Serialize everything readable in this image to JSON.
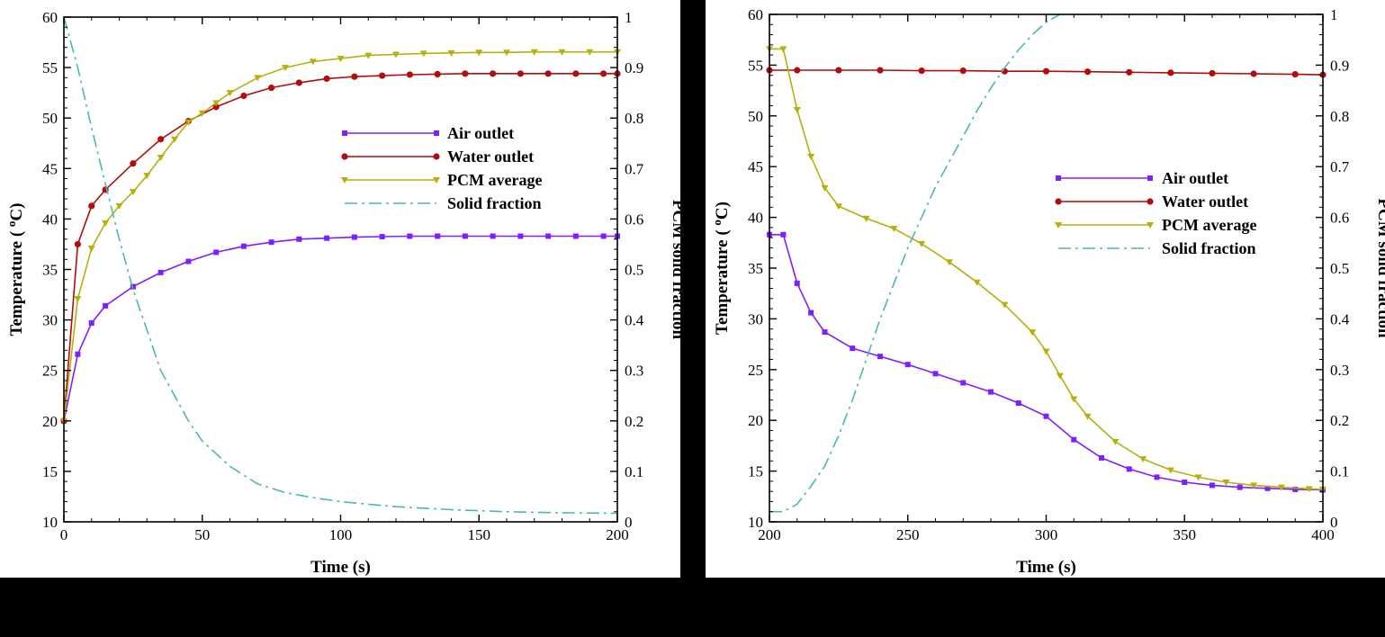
{
  "colors": {
    "air": "#7f1fff",
    "water": "#b20d0d",
    "pcm": "#b5b00c",
    "solid": "#4db6b6"
  },
  "chart_data": [
    {
      "type": "line",
      "xlabel": "Time (s)",
      "ylabel_left": "Temperature ( ",
      "ylabel_left_sup": "o",
      "ylabel_left_tail": "C)",
      "ylabel_right": "PCM solid fraction",
      "xlim": [
        0,
        200
      ],
      "ylim_left": [
        10,
        60
      ],
      "ylim_right": [
        0,
        1
      ],
      "x_ticks": [
        0,
        50,
        100,
        150,
        200
      ],
      "y_ticks_left": [
        10,
        15,
        20,
        25,
        30,
        35,
        40,
        45,
        50,
        55,
        60
      ],
      "y_ticks_right": [
        0,
        0.1,
        0.2,
        0.3,
        0.4,
        0.5,
        0.6,
        0.7,
        0.8,
        0.9,
        1
      ],
      "grid": false,
      "legend_position": "center-right",
      "series": [
        {
          "name": "Air outlet",
          "axis": "left",
          "marker": "square",
          "color_key": "air",
          "x": [
            0,
            5,
            10,
            15,
            25,
            35,
            45,
            55,
            65,
            75,
            85,
            95,
            105,
            115,
            125,
            135,
            145,
            155,
            165,
            175,
            185,
            195,
            200
          ],
          "y": [
            20,
            26.6,
            29.7,
            31.4,
            33.3,
            34.7,
            35.8,
            36.7,
            37.3,
            37.7,
            38.0,
            38.1,
            38.2,
            38.25,
            38.3,
            38.3,
            38.3,
            38.3,
            38.3,
            38.3,
            38.3,
            38.3,
            38.3
          ]
        },
        {
          "name": "Water outlet",
          "axis": "left",
          "marker": "circle",
          "color_key": "water",
          "x": [
            0,
            5,
            10,
            15,
            25,
            35,
            45,
            55,
            65,
            75,
            85,
            95,
            105,
            115,
            125,
            135,
            145,
            155,
            165,
            175,
            185,
            195,
            200
          ],
          "y": [
            20,
            37.5,
            41.3,
            42.9,
            45.5,
            47.9,
            49.7,
            51.1,
            52.2,
            53.0,
            53.5,
            53.9,
            54.1,
            54.2,
            54.3,
            54.35,
            54.4,
            54.4,
            54.4,
            54.4,
            54.4,
            54.4,
            54.4
          ]
        },
        {
          "name": "PCM average",
          "axis": "left",
          "marker": "triangle-down",
          "color_key": "pcm",
          "x": [
            0,
            5,
            10,
            15,
            20,
            25,
            30,
            35,
            40,
            45,
            50,
            55,
            60,
            70,
            80,
            90,
            100,
            110,
            120,
            130,
            140,
            150,
            160,
            170,
            180,
            190,
            200
          ],
          "y": [
            20,
            32.1,
            37.1,
            39.6,
            41.3,
            42.7,
            44.3,
            46.1,
            47.9,
            49.6,
            50.5,
            51.5,
            52.5,
            54.0,
            55.0,
            55.6,
            55.9,
            56.2,
            56.3,
            56.4,
            56.45,
            56.5,
            56.5,
            56.55,
            56.55,
            56.55,
            56.55
          ]
        },
        {
          "name": "Solid fraction",
          "axis": "right",
          "marker": "none",
          "color_key": "solid",
          "dash": "dash-dot",
          "x": [
            0,
            5,
            10,
            15,
            20,
            25,
            30,
            35,
            40,
            45,
            50,
            60,
            70,
            80,
            90,
            100,
            120,
            140,
            160,
            180,
            200
          ],
          "y": [
            1.0,
            0.9,
            0.78,
            0.67,
            0.56,
            0.46,
            0.38,
            0.3,
            0.25,
            0.2,
            0.16,
            0.11,
            0.075,
            0.058,
            0.048,
            0.04,
            0.03,
            0.024,
            0.02,
            0.018,
            0.017
          ]
        }
      ]
    },
    {
      "type": "line",
      "xlabel": "Time (s)",
      "ylabel_left": "Temperature ( ",
      "ylabel_left_sup": "o",
      "ylabel_left_tail": "C)",
      "ylabel_right": "PCM solid fraction",
      "xlim": [
        200,
        400
      ],
      "ylim_left": [
        10,
        60
      ],
      "ylim_right": [
        0,
        1
      ],
      "x_ticks": [
        200,
        250,
        300,
        350,
        400
      ],
      "y_ticks_left": [
        10,
        15,
        20,
        25,
        30,
        35,
        40,
        45,
        50,
        55,
        60
      ],
      "y_ticks_right": [
        0,
        0.1,
        0.2,
        0.3,
        0.4,
        0.5,
        0.6,
        0.7,
        0.8,
        0.9,
        1
      ],
      "grid": false,
      "legend_position": "center-right",
      "series": [
        {
          "name": "Air outlet",
          "axis": "left",
          "marker": "square",
          "color_key": "air",
          "x": [
            200,
            205,
            210,
            215,
            220,
            230,
            240,
            250,
            260,
            270,
            280,
            290,
            300,
            310,
            320,
            330,
            340,
            350,
            360,
            370,
            380,
            390,
            400
          ],
          "y": [
            38.3,
            38.3,
            33.5,
            30.6,
            28.7,
            27.1,
            26.3,
            25.5,
            24.6,
            23.7,
            22.8,
            21.7,
            20.4,
            18.1,
            16.3,
            15.2,
            14.4,
            13.9,
            13.6,
            13.4,
            13.3,
            13.2,
            13.15
          ]
        },
        {
          "name": "Water outlet",
          "axis": "left",
          "marker": "circle",
          "color_key": "water",
          "x": [
            200,
            210,
            225,
            240,
            255,
            270,
            285,
            300,
            315,
            330,
            345,
            360,
            375,
            390,
            400
          ],
          "y": [
            54.5,
            54.5,
            54.5,
            54.5,
            54.45,
            54.45,
            54.4,
            54.4,
            54.35,
            54.3,
            54.25,
            54.2,
            54.15,
            54.1,
            54.05
          ]
        },
        {
          "name": "PCM average",
          "axis": "left",
          "marker": "triangle-down",
          "color_key": "pcm",
          "x": [
            200,
            205,
            210,
            215,
            220,
            225,
            235,
            245,
            255,
            265,
            275,
            285,
            295,
            300,
            305,
            310,
            315,
            325,
            335,
            345,
            355,
            365,
            375,
            385,
            395,
            400
          ],
          "y": [
            56.6,
            56.6,
            50.6,
            46.0,
            42.9,
            41.1,
            39.9,
            38.9,
            37.4,
            35.6,
            33.6,
            31.4,
            28.7,
            26.8,
            24.4,
            22.1,
            20.4,
            17.9,
            16.2,
            15.1,
            14.4,
            13.9,
            13.6,
            13.4,
            13.25,
            13.2
          ]
        },
        {
          "name": "Solid fraction",
          "axis": "right",
          "marker": "none",
          "color_key": "solid",
          "dash": "dash-dot",
          "x": [
            200,
            205,
            210,
            215,
            220,
            225,
            230,
            235,
            240,
            245,
            250,
            255,
            260,
            265,
            270,
            275,
            280,
            285,
            290,
            295,
            300,
            305,
            310,
            320,
            340,
            360,
            380,
            400
          ],
          "y": [
            0.02,
            0.02,
            0.035,
            0.07,
            0.11,
            0.17,
            0.24,
            0.32,
            0.4,
            0.47,
            0.54,
            0.6,
            0.66,
            0.71,
            0.76,
            0.81,
            0.855,
            0.895,
            0.93,
            0.96,
            0.985,
            1.0,
            1.0,
            1.0,
            1.0,
            1.0,
            1.0,
            1.0
          ]
        }
      ]
    }
  ]
}
